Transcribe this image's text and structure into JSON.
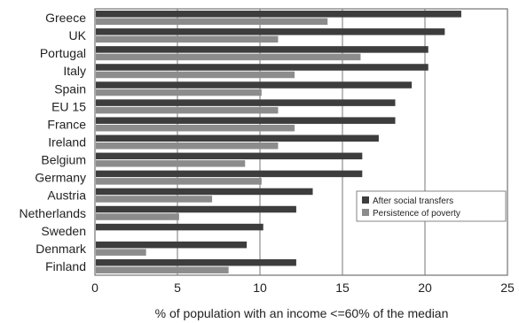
{
  "chart_data": {
    "type": "bar",
    "orientation": "horizontal",
    "categories": [
      "Greece",
      "UK",
      "Portugal",
      "Italy",
      "Spain",
      "EU 15",
      "France",
      "Ireland",
      "Belgium",
      "Germany",
      "Austria",
      "Netherlands",
      "Sweden",
      "Denmark",
      "Finland"
    ],
    "series": [
      {
        "name": "After social transfers",
        "color": "#3d3d3d",
        "values": [
          22.2,
          21.2,
          20.2,
          20.2,
          19.2,
          18.2,
          18.2,
          17.2,
          16.2,
          16.2,
          13.2,
          12.2,
          10.2,
          9.2,
          12.2
        ]
      },
      {
        "name": "Persistence of poverty",
        "color": "#8c8c8c",
        "values": [
          14.1,
          11.1,
          16.1,
          12.1,
          10.1,
          11.1,
          12.1,
          11.1,
          9.1,
          10.1,
          7.1,
          5.1,
          null,
          3.1,
          8.1
        ]
      }
    ],
    "xlim": [
      0,
      25
    ],
    "xticks": [
      0,
      5,
      10,
      15,
      20,
      25
    ],
    "xlabel": "% of population with an income <=60% of the median",
    "ylabel": "",
    "title": "",
    "grid": "vertical",
    "legend": "lower-right"
  }
}
